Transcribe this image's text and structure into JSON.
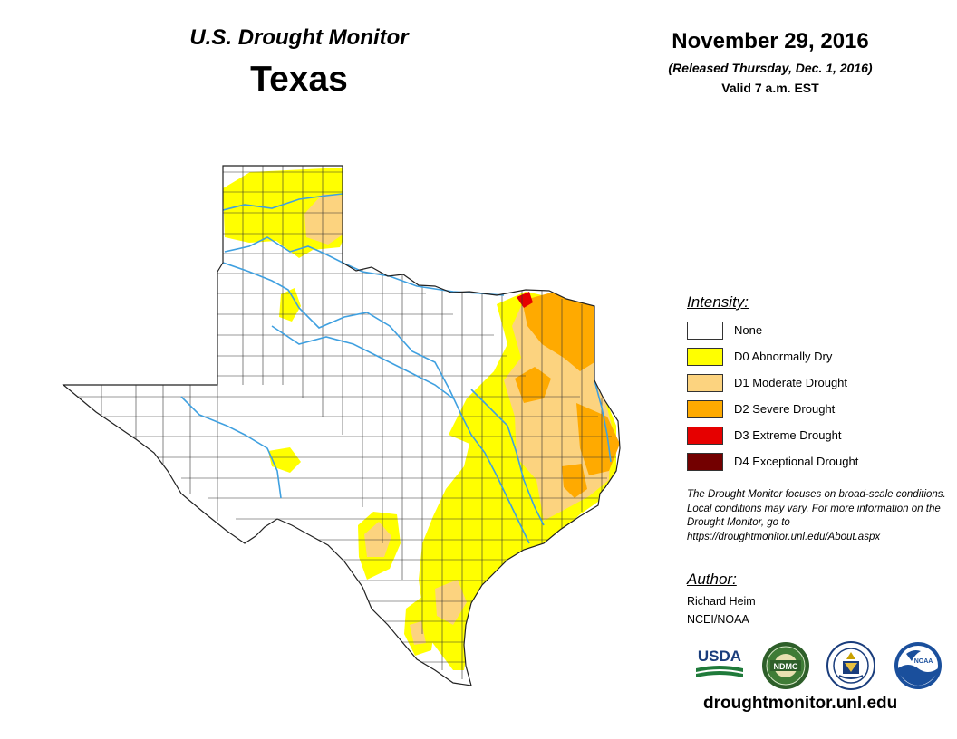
{
  "header": {
    "title": "U.S. Drought Monitor",
    "state": "Texas",
    "date": "November 29, 2016",
    "released": "(Released Thursday, Dec. 1, 2016)",
    "valid": "Valid 7 a.m. EST"
  },
  "legend": {
    "heading": "Intensity:",
    "items": [
      {
        "label": "None",
        "color": "#ffffff"
      },
      {
        "label": "D0 Abnormally Dry",
        "color": "#ffff00"
      },
      {
        "label": "D1 Moderate Drought",
        "color": "#fcd37f"
      },
      {
        "label": "D2 Severe Drought",
        "color": "#ffaa00"
      },
      {
        "label": "D3 Extreme Drought",
        "color": "#e60000"
      },
      {
        "label": "D4 Exceptional Drought",
        "color": "#730000"
      }
    ]
  },
  "note": {
    "text": "The Drought Monitor focuses on broad-scale conditions. Local conditions may vary. For more information on the Drought Monitor, go to https://droughtmonitor.unl.edu/About.aspx"
  },
  "author": {
    "heading": "Author:",
    "name": "Richard Heim",
    "org": "NCEI/NOAA"
  },
  "logos": {
    "usda": "USDA",
    "ndmc": "NDMC",
    "noaa": "NOAA"
  },
  "footer": {
    "url": "droughtmonitor.unl.edu"
  },
  "colors": {
    "river": "#3fa0e0",
    "county_line": "#333333",
    "d0": "#ffff00",
    "d1": "#fcd37f",
    "d2": "#ffaa00",
    "d3": "#e60000"
  }
}
